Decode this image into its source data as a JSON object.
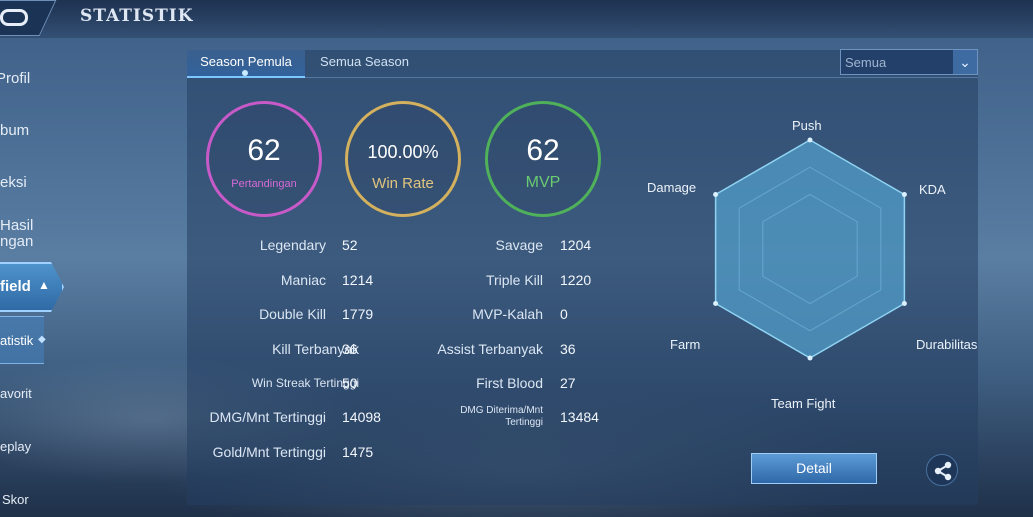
{
  "header": {
    "title": "STATISTIK"
  },
  "sidebar": {
    "items": [
      {
        "label": "Profil"
      },
      {
        "label": "bum"
      },
      {
        "label": "eksi"
      },
      {
        "label": "Hasil"
      },
      {
        "label": "ngan"
      },
      {
        "label": "field"
      },
      {
        "label": "atistik"
      },
      {
        "label": "avorit"
      },
      {
        "label": "eplay"
      },
      {
        "label": "Skor"
      }
    ]
  },
  "tabs": [
    {
      "label": "Season Pemula",
      "active": true
    },
    {
      "label": "Semua Season",
      "active": false
    }
  ],
  "filter": {
    "selected": "Semua"
  },
  "summary": {
    "matches": {
      "value": "62",
      "label": "Pertandingan",
      "color": "#c75ac8"
    },
    "win_rate": {
      "value": "100.00%",
      "label": "Win Rate",
      "color": "#d3b15e"
    },
    "mvp": {
      "value": "62",
      "label": "MVP",
      "color": "#4fb25a"
    }
  },
  "stats_left": [
    {
      "label": "Legendary",
      "value": "52"
    },
    {
      "label": "Maniac",
      "value": "1214"
    },
    {
      "label": "Double Kill",
      "value": "1779"
    },
    {
      "label": "Kill Terbanyak",
      "value": "36"
    },
    {
      "label": "Win Streak Tertinggi",
      "value": "50"
    },
    {
      "label": "DMG/Mnt Tertinggi",
      "value": "14098"
    },
    {
      "label": "Gold/Mnt Tertinggi",
      "value": "1475"
    }
  ],
  "stats_right": [
    {
      "label": "Savage",
      "value": "1204"
    },
    {
      "label": "Triple Kill",
      "value": "1220"
    },
    {
      "label": "MVP-Kalah",
      "value": "0"
    },
    {
      "label": "Assist Terbanyak",
      "value": "36"
    },
    {
      "label": "First Blood",
      "value": "27"
    },
    {
      "label": "DMG Diterima/Mnt",
      "label2": "Tertinggi",
      "value": "13484"
    }
  ],
  "radar": {
    "axes": [
      "Push",
      "KDA",
      "Durabilitas",
      "Team Fight",
      "Farm",
      "Damage"
    ],
    "values": [
      1,
      1,
      1,
      1,
      1,
      1
    ]
  },
  "actions": {
    "detail_label": "Detail",
    "share_icon": "share-icon"
  }
}
